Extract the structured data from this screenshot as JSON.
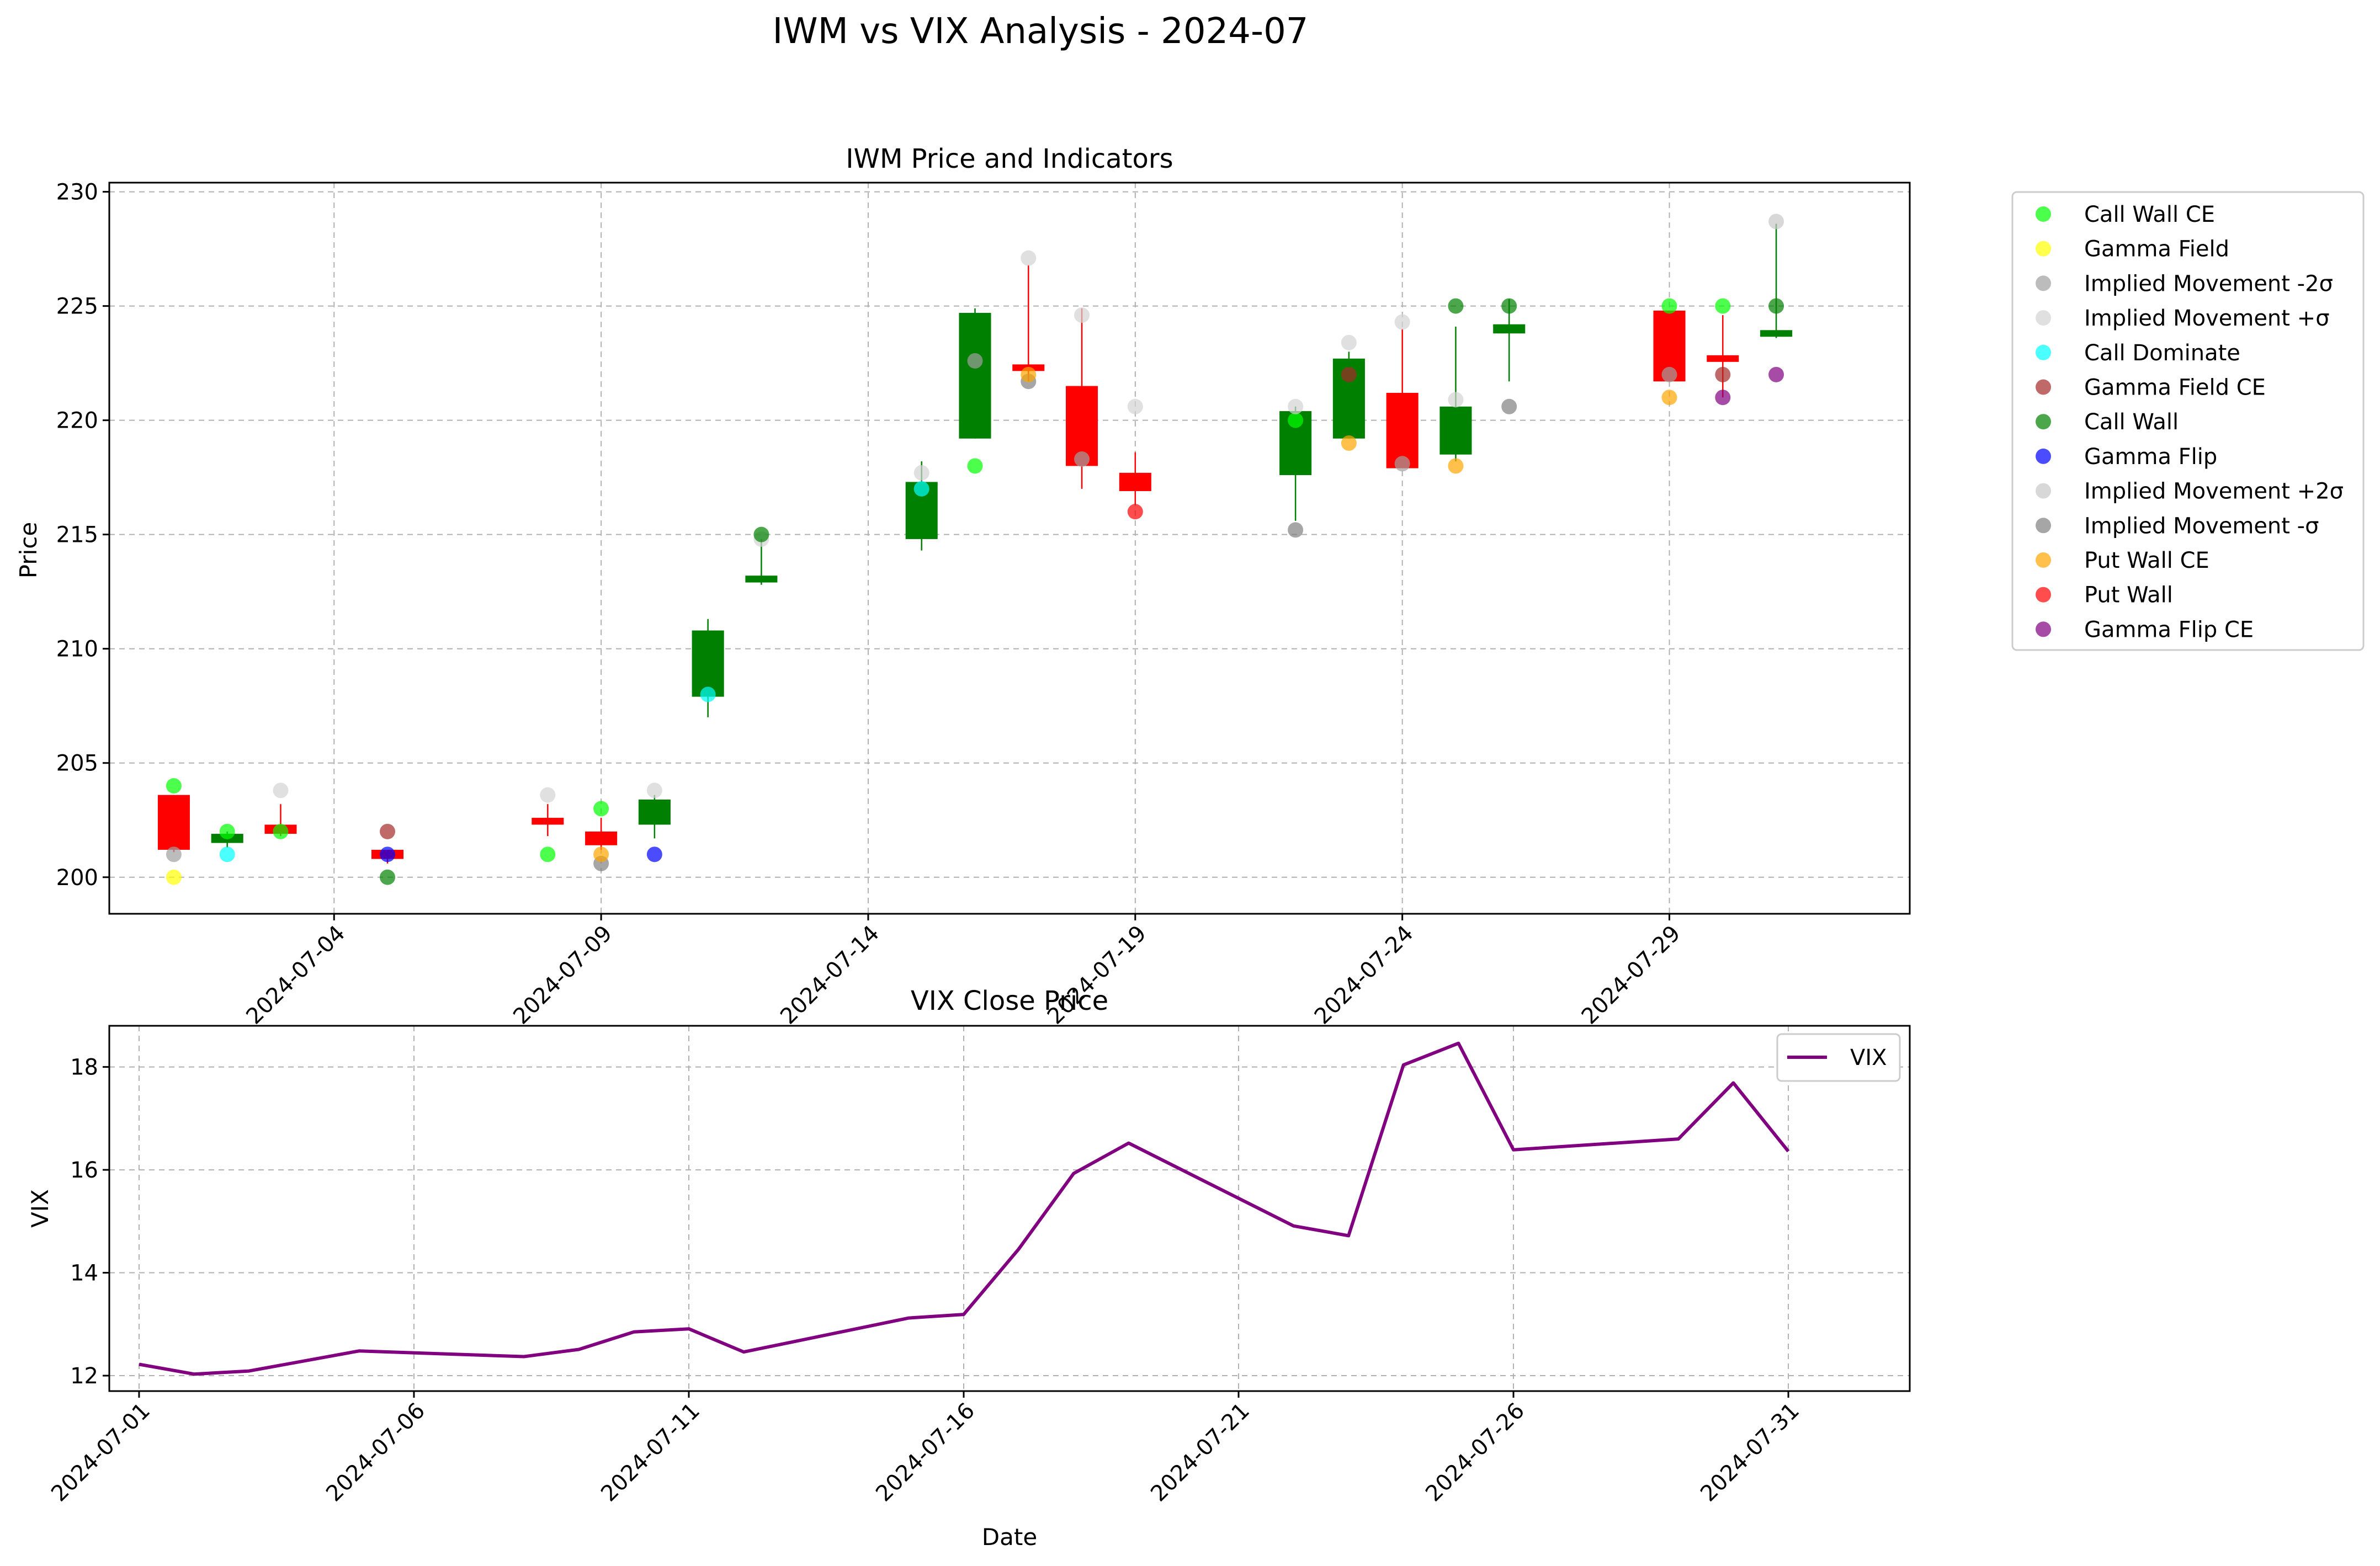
{
  "figure": {
    "suptitle": "IWM vs VIX Analysis - 2024-07"
  },
  "colors": {
    "up": "#008000",
    "down": "#ff0000",
    "vix_line": "#800080",
    "grid": "#b0b0b0"
  },
  "chart_data": [
    {
      "type": "candlestick",
      "title": "IWM Price and Indicators",
      "xlabel": "",
      "ylabel": "Price",
      "ylim": [
        198.4,
        230.4
      ],
      "xlim": [
        "2024-06-29T19:00",
        "2024-08-02T12:00"
      ],
      "yticks": [
        200,
        205,
        210,
        215,
        220,
        225,
        230
      ],
      "xticks": [
        "2024-07-04",
        "2024-07-09",
        "2024-07-14",
        "2024-07-19",
        "2024-07-24",
        "2024-07-29"
      ],
      "grid": true,
      "legend_position": "outside right",
      "candles": [
        {
          "date": "2024-07-01",
          "open": 203.6,
          "high": 203.6,
          "low": 201.1,
          "close": 201.2
        },
        {
          "date": "2024-07-02",
          "open": 201.5,
          "high": 202.0,
          "low": 201.3,
          "close": 201.9
        },
        {
          "date": "2024-07-03",
          "open": 202.3,
          "high": 203.2,
          "low": 201.8,
          "close": 201.9
        },
        {
          "date": "2024-07-05",
          "open": 201.2,
          "high": 201.2,
          "low": 200.6,
          "close": 200.8
        },
        {
          "date": "2024-07-08",
          "open": 202.6,
          "high": 203.2,
          "low": 201.8,
          "close": 202.3
        },
        {
          "date": "2024-07-09",
          "open": 202.0,
          "high": 202.6,
          "low": 201.2,
          "close": 201.4
        },
        {
          "date": "2024-07-10",
          "open": 202.3,
          "high": 203.6,
          "low": 201.7,
          "close": 203.4
        },
        {
          "date": "2024-07-11",
          "open": 207.9,
          "high": 211.3,
          "low": 207.0,
          "close": 210.8
        },
        {
          "date": "2024-07-12",
          "open": 212.9,
          "high": 214.8,
          "low": 212.8,
          "close": 213.2
        },
        {
          "date": "2024-07-15",
          "open": 214.8,
          "high": 218.2,
          "low": 214.3,
          "close": 217.3
        },
        {
          "date": "2024-07-16",
          "open": 219.2,
          "high": 224.9,
          "low": 219.2,
          "close": 224.7
        },
        {
          "date": "2024-07-17",
          "open": 222.4,
          "high": 226.8,
          "low": 221.7,
          "close": 222.2
        },
        {
          "date": "2024-07-18",
          "open": 221.5,
          "high": 224.9,
          "low": 217.0,
          "close": 218.0
        },
        {
          "date": "2024-07-19",
          "open": 217.7,
          "high": 218.6,
          "low": 216.3,
          "close": 216.9
        },
        {
          "date": "2024-07-22",
          "open": 217.6,
          "high": 220.6,
          "low": 215.6,
          "close": 220.4
        },
        {
          "date": "2024-07-23",
          "open": 219.2,
          "high": 223.0,
          "low": 219.2,
          "close": 222.7
        },
        {
          "date": "2024-07-24",
          "open": 221.2,
          "high": 224.0,
          "low": 217.9,
          "close": 217.9
        },
        {
          "date": "2024-07-25",
          "open": 218.5,
          "high": 224.1,
          "low": 218.2,
          "close": 220.6
        },
        {
          "date": "2024-07-26",
          "open": 223.8,
          "high": 225.3,
          "low": 221.7,
          "close": 224.2
        },
        {
          "date": "2024-07-29",
          "open": 224.8,
          "high": 224.8,
          "low": 221.7,
          "close": 221.7
        },
        {
          "date": "2024-07-30",
          "open": 222.8,
          "high": 224.6,
          "low": 221.0,
          "close": 222.6
        },
        {
          "date": "2024-07-31",
          "open": 223.7,
          "high": 228.6,
          "low": 223.6,
          "close": 223.9
        }
      ],
      "indicators": [
        {
          "name": "Call Wall CE",
          "color": "#00ff00",
          "points": [
            [
              "2024-07-01",
              204.0
            ],
            [
              "2024-07-02",
              202.0
            ],
            [
              "2024-07-03",
              202.0
            ],
            [
              "2024-07-08",
              201.0
            ],
            [
              "2024-07-09",
              203.0
            ],
            [
              "2024-07-16",
              218.0
            ],
            [
              "2024-07-22",
              220.0
            ],
            [
              "2024-07-29",
              225.0
            ],
            [
              "2024-07-30",
              225.0
            ]
          ]
        },
        {
          "name": "Gamma Field",
          "color": "#ffff00",
          "points": [
            [
              "2024-07-01",
              200.0
            ]
          ]
        },
        {
          "name": "Implied Movement -2σ",
          "color": "#a0a0a0",
          "points": [
            [
              "2024-07-01",
              201.0
            ],
            [
              "2024-07-16",
              222.6
            ],
            [
              "2024-07-18",
              218.3
            ],
            [
              "2024-07-24",
              218.1
            ],
            [
              "2024-07-29",
              222.0
            ]
          ]
        },
        {
          "name": "Implied Movement +σ",
          "color": "#d3d3d3",
          "points": [
            [
              "2024-07-03",
              203.8
            ],
            [
              "2024-07-08",
              203.6
            ],
            [
              "2024-07-10",
              203.8
            ],
            [
              "2024-07-12",
              214.8
            ],
            [
              "2024-07-15",
              217.7
            ],
            [
              "2024-07-17",
              227.1
            ],
            [
              "2024-07-18",
              224.6
            ],
            [
              "2024-07-19",
              220.6
            ],
            [
              "2024-07-22",
              220.6
            ],
            [
              "2024-07-23",
              223.4
            ],
            [
              "2024-07-24",
              224.3
            ],
            [
              "2024-07-25",
              220.9
            ]
          ]
        },
        {
          "name": "Call Dominate",
          "color": "#00ffff",
          "points": [
            [
              "2024-07-02",
              201.0
            ],
            [
              "2024-07-11",
              208.0
            ],
            [
              "2024-07-15",
              217.0
            ]
          ]
        },
        {
          "name": "Gamma Field CE",
          "color": "#a52a2a",
          "points": [
            [
              "2024-07-05",
              202.0
            ],
            [
              "2024-07-23",
              222.0
            ],
            [
              "2024-07-30",
              222.0
            ]
          ]
        },
        {
          "name": "Call Wall",
          "color": "#008000",
          "points": [
            [
              "2024-07-05",
              200.0
            ],
            [
              "2024-07-12",
              215.0
            ],
            [
              "2024-07-25",
              225.0
            ],
            [
              "2024-07-26",
              225.0
            ],
            [
              "2024-07-31",
              225.0
            ]
          ]
        },
        {
          "name": "Gamma Flip",
          "color": "#0000ff",
          "points": [
            [
              "2024-07-05",
              201.0
            ],
            [
              "2024-07-10",
              201.0
            ]
          ]
        },
        {
          "name": "Implied Movement +2σ",
          "color": "#c8c8c8",
          "points": [
            [
              "2024-07-31",
              228.7
            ]
          ]
        },
        {
          "name": "Implied Movement -σ",
          "color": "#808080",
          "points": [
            [
              "2024-07-09",
              200.6
            ],
            [
              "2024-07-17",
              221.7
            ],
            [
              "2024-07-22",
              215.2
            ],
            [
              "2024-07-26",
              220.6
            ]
          ]
        },
        {
          "name": "Put Wall CE",
          "color": "#ffa500",
          "points": [
            [
              "2024-07-09",
              201.0
            ],
            [
              "2024-07-17",
              222.0
            ],
            [
              "2024-07-23",
              219.0
            ],
            [
              "2024-07-25",
              218.0
            ],
            [
              "2024-07-29",
              221.0
            ]
          ]
        },
        {
          "name": "Put Wall",
          "color": "#ff0000",
          "points": [
            [
              "2024-07-19",
              216.0
            ]
          ]
        },
        {
          "name": "Gamma Flip CE",
          "color": "#800080",
          "points": [
            [
              "2024-07-30",
              221.0
            ],
            [
              "2024-07-31",
              222.0
            ]
          ]
        }
      ]
    },
    {
      "type": "line",
      "title": "VIX Close Price",
      "xlabel": "Date",
      "ylabel": "VIX",
      "ylim": [
        11.7,
        18.8
      ],
      "xlim": [
        "2024-06-30T11:00",
        "2024-08-02T05:00"
      ],
      "yticks": [
        12,
        14,
        16,
        18
      ],
      "xticks": [
        "2024-07-01",
        "2024-07-06",
        "2024-07-11",
        "2024-07-16",
        "2024-07-21",
        "2024-07-26",
        "2024-07-31"
      ],
      "grid": true,
      "legend_position": "upper right",
      "series": [
        {
          "name": "VIX",
          "x": [
            "2024-07-01",
            "2024-07-02",
            "2024-07-03",
            "2024-07-05",
            "2024-07-08",
            "2024-07-09",
            "2024-07-10",
            "2024-07-11",
            "2024-07-12",
            "2024-07-15",
            "2024-07-16",
            "2024-07-17",
            "2024-07-18",
            "2024-07-19",
            "2024-07-22",
            "2024-07-23",
            "2024-07-24",
            "2024-07-25",
            "2024-07-26",
            "2024-07-29",
            "2024-07-30",
            "2024-07-31"
          ],
          "values": [
            12.22,
            12.03,
            12.09,
            12.48,
            12.37,
            12.51,
            12.85,
            12.91,
            12.46,
            13.12,
            13.19,
            14.46,
            15.93,
            16.52,
            14.91,
            14.72,
            18.04,
            18.46,
            16.39,
            16.6,
            17.69,
            16.36
          ]
        }
      ]
    }
  ]
}
